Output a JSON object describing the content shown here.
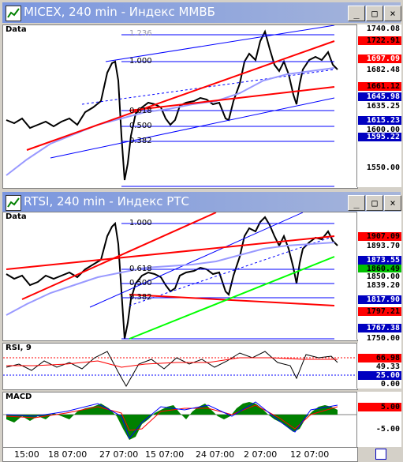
{
  "windows": [
    {
      "title": "MICEX, 240 min - Индекс ММВБ",
      "buttons": [
        "_",
        "□",
        "×"
      ],
      "data_label": "Data",
      "fib_labels": [
        "1.236",
        "1.000",
        "0.618",
        "0.500",
        "0.382"
      ],
      "price_tags": [
        {
          "value": "1740.08",
          "bg": "#ffffff",
          "fg": "#000000"
        },
        {
          "value": "1722.91",
          "bg": "#ff0000",
          "fg": "#000000"
        },
        {
          "value": "1697.09",
          "bg": "#ff0000",
          "fg": "#ffffff"
        },
        {
          "value": "1682.48",
          "bg": "#ffffff",
          "fg": "#000000"
        },
        {
          "value": "1661.12",
          "bg": "#ff0000",
          "fg": "#000000"
        },
        {
          "value": "1645.98",
          "bg": "#0000c0",
          "fg": "#ffffff"
        },
        {
          "value": "1635.25",
          "bg": "#ffffff",
          "fg": "#000000"
        },
        {
          "value": "1615.23",
          "bg": "#0000c0",
          "fg": "#ffffff"
        },
        {
          "value": "1600.00",
          "bg": "#ffffff",
          "fg": "#000000"
        },
        {
          "value": "1595.22",
          "bg": "#0000c0",
          "fg": "#ffffff"
        },
        {
          "value": "1550.00",
          "bg": "#ffffff",
          "fg": "#000000"
        }
      ]
    },
    {
      "title": "RTSI, 240 min - Индекс РТС",
      "buttons": [
        "_",
        "□",
        "×"
      ],
      "data_label": "Data",
      "fib_labels": [
        "1.000",
        "0.618",
        "0.500",
        "0.382"
      ],
      "price_tags": [
        {
          "value": "1907.09",
          "bg": "#ff0000",
          "fg": "#000000"
        },
        {
          "value": "1893.70",
          "bg": "#ffffff",
          "fg": "#000000"
        },
        {
          "value": "1873.55",
          "bg": "#0000c0",
          "fg": "#ffffff"
        },
        {
          "value": "1860.49",
          "bg": "#00c000",
          "fg": "#000000"
        },
        {
          "value": "1850.00",
          "bg": "#ffffff",
          "fg": "#000000"
        },
        {
          "value": "1839.20",
          "bg": "#ffffff",
          "fg": "#000000"
        },
        {
          "value": "1817.90",
          "bg": "#0000c0",
          "fg": "#ffffff"
        },
        {
          "value": "1797.21",
          "bg": "#ff0000",
          "fg": "#000000"
        },
        {
          "value": "1767.38",
          "bg": "#0000c0",
          "fg": "#ffffff"
        },
        {
          "value": "1750.00",
          "bg": "#ffffff",
          "fg": "#000000"
        }
      ],
      "rsi": {
        "label": "RSI, 9",
        "tags": [
          {
            "value": "66.98",
            "bg": "#ff0000",
            "fg": "#000000"
          },
          {
            "value": "49.33",
            "bg": "#ffffff",
            "fg": "#000000"
          },
          {
            "value": "25.00",
            "bg": "#0000c0",
            "fg": "#ffffff"
          },
          {
            "value": "0.00",
            "bg": "#ffffff",
            "fg": "#000000"
          }
        ]
      },
      "macd": {
        "label": "MACD",
        "tags": [
          {
            "value": "5.00",
            "bg": "#ff0000",
            "fg": "#000000"
          },
          {
            "value": "-5.00",
            "bg": "#ffffff",
            "fg": "#000000"
          }
        ]
      }
    }
  ],
  "x_axis": [
    "15:00",
    "18 07:00",
    "27 07:00",
    "15 07:00",
    "24 07:00",
    "2 07:00",
    "12 07:00"
  ],
  "colors": {
    "candle": "#000000",
    "trend_red": "#ff0000",
    "channel_blue": "#0000ff",
    "ma_lightblue": "#9999ff",
    "trend_green": "#00ff00",
    "macd_hist": "#008000"
  }
}
